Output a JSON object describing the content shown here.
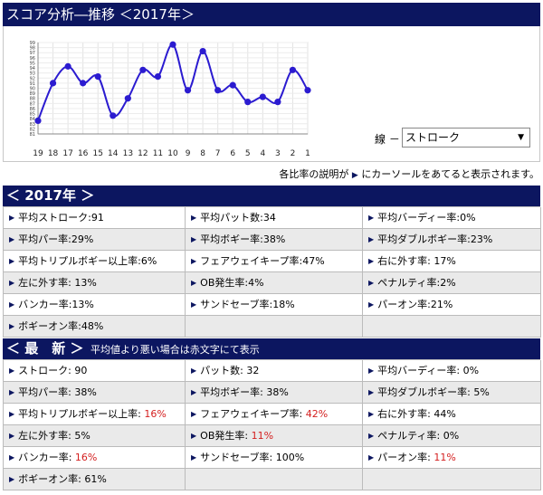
{
  "title": "スコア分析―推移 ＜2017年＞",
  "chart": {
    "line_label": "線 －",
    "selected_line": "ストローク",
    "x_labels": [
      "19",
      "18",
      "17",
      "16",
      "15",
      "14",
      "13",
      "12",
      "11",
      "10",
      "9",
      "8",
      "7",
      "6",
      "5",
      "4",
      "3",
      "2",
      "1"
    ],
    "y_ticks": [
      "99",
      "98",
      "97",
      "96",
      "95",
      "94",
      "93",
      "92",
      "91",
      "90",
      "89",
      "88",
      "87",
      "86",
      "85",
      "84",
      "83",
      "82",
      "81"
    ],
    "line_color": "#2b1bd0"
  },
  "chart_data": {
    "type": "line",
    "x": [
      "19",
      "18",
      "17",
      "16",
      "15",
      "14",
      "13",
      "12",
      "11",
      "10",
      "9",
      "8",
      "7",
      "6",
      "5",
      "4",
      "3",
      "2",
      "1"
    ],
    "series": [
      {
        "values": [
          83.6,
          91.0,
          94.3,
          91.0,
          92.3,
          84.6,
          88.0,
          93.6,
          92.3,
          98.6,
          89.6,
          97.3,
          89.6,
          90.6,
          87.3,
          88.3,
          87.3,
          93.6,
          89.6
        ]
      }
    ],
    "ylim": [
      81,
      99
    ]
  },
  "note": {
    "before": "各比率の説明が",
    "after": "にカーソールをあてると表示されます。"
  },
  "section2017": {
    "title": "＜ 2017年 ＞",
    "cells": [
      {
        "label": "平均ストローク:91"
      },
      {
        "label": "平均パット数:34"
      },
      {
        "label": "平均バーディー率:0%"
      },
      {
        "label": "平均パー率:29%"
      },
      {
        "label": "平均ボギー率:38%"
      },
      {
        "label": "平均ダブルボギー率:23%"
      },
      {
        "label": "平均トリプルボギー以上率:6%"
      },
      {
        "label": "フェアウェイキープ率:47%"
      },
      {
        "label": "右に外す率: 17%"
      },
      {
        "label": "左に外す率: 13%"
      },
      {
        "label": "OB発生率:4%"
      },
      {
        "label": "ペナルティ率:2%"
      },
      {
        "label": "バンカー率:13%"
      },
      {
        "label": "サンドセーブ率:18%"
      },
      {
        "label": "パーオン率:21%"
      },
      {
        "label": "ボギーオン率:48%"
      },
      {
        "label": ""
      },
      {
        "label": ""
      }
    ]
  },
  "sectionLatest": {
    "title": "＜ 最　新 ＞",
    "subtitle": "平均値より悪い場合は赤文字にて表示",
    "cells": [
      {
        "label": "ストローク: ",
        "value": "90",
        "warn": false
      },
      {
        "label": "パット数: ",
        "value": "32",
        "warn": false
      },
      {
        "label": "平均バーディー率: ",
        "value": "0%",
        "warn": false
      },
      {
        "label": "平均パー率: ",
        "value": "38%",
        "warn": false
      },
      {
        "label": "平均ボギー率: ",
        "value": "38%",
        "warn": false
      },
      {
        "label": "平均ダブルボギー率: ",
        "value": "5%",
        "warn": false
      },
      {
        "label": "平均トリプルボギー以上率: ",
        "value": "16%",
        "warn": true
      },
      {
        "label": "フェアウェイキープ率: ",
        "value": "42%",
        "warn": true
      },
      {
        "label": "右に外す率: ",
        "value": "44%",
        "warn": false
      },
      {
        "label": "左に外す率: ",
        "value": "5%",
        "warn": false
      },
      {
        "label": "OB発生率: ",
        "value": "11%",
        "warn": true
      },
      {
        "label": "ペナルティ率: ",
        "value": "0%",
        "warn": false
      },
      {
        "label": "バンカー率: ",
        "value": "16%",
        "warn": true
      },
      {
        "label": "サンドセーブ率: ",
        "value": "100%",
        "warn": false
      },
      {
        "label": "パーオン率: ",
        "value": "11%",
        "warn": true
      },
      {
        "label": "ボギーオン率: ",
        "value": "61%",
        "warn": false
      },
      {
        "label": "",
        "value": "",
        "warn": false
      },
      {
        "label": "",
        "value": "",
        "warn": false
      }
    ]
  },
  "colors": {
    "header_bg": "#0c1660",
    "warn_text": "#d42020"
  }
}
